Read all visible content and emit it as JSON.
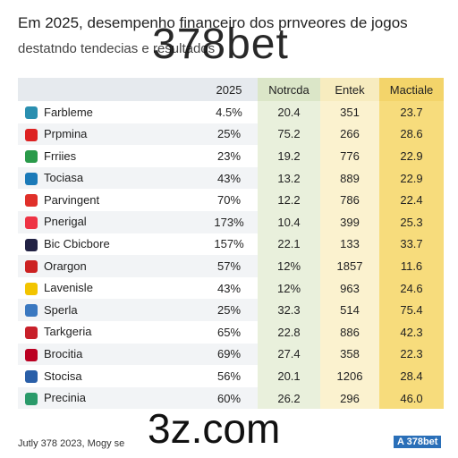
{
  "header": {
    "title": "Em 2025, desempenho financeiro dos prnveores de jogos",
    "subtitle": "destatndo tendecias e resultados"
  },
  "watermarks": [
    "378bet",
    "3z.com"
  ],
  "table": {
    "columns": [
      "2025",
      "Notrcda",
      "Entek",
      "Mactiale"
    ],
    "rows": [
      [
        "Farbleme",
        "4.5%",
        "20.4",
        "351",
        "23.7"
      ],
      [
        "Prpmina",
        "25%",
        "75.2",
        "266",
        "28.6"
      ],
      [
        "Frriies",
        "23%",
        "19.2",
        "776",
        "22.9"
      ],
      [
        "Tociasa",
        "43%",
        "13.2",
        "889",
        "22.9"
      ],
      [
        "Parvingent",
        "70%",
        "12.2",
        "786",
        "22.4"
      ],
      [
        "Pnerigal",
        "173%",
        "10.4",
        "399",
        "25.3"
      ],
      [
        "Bic Cbicbore",
        "157%",
        "22.1",
        "133",
        "33.7"
      ],
      [
        "Orargon",
        "57%",
        "12%",
        "1857",
        "11.6"
      ],
      [
        "Lavenisle",
        "43%",
        "12%",
        "963",
        "24.6"
      ],
      [
        "Sperla",
        "25%",
        "32.3",
        "514",
        "75.4"
      ],
      [
        "Tarkgeria",
        "65%",
        "22.8",
        "886",
        "42.3"
      ],
      [
        "Brocitia",
        "69%",
        "27.4",
        "358",
        "22.3"
      ],
      [
        "Stocisa",
        "56%",
        "20.1",
        "1206",
        "28.4"
      ],
      [
        "Precinia",
        "60%",
        "26.2",
        "296",
        "46.0"
      ]
    ]
  },
  "footer": {
    "note": "Jutly 378 2023, Mogy se",
    "badge": "A 378bet"
  }
}
